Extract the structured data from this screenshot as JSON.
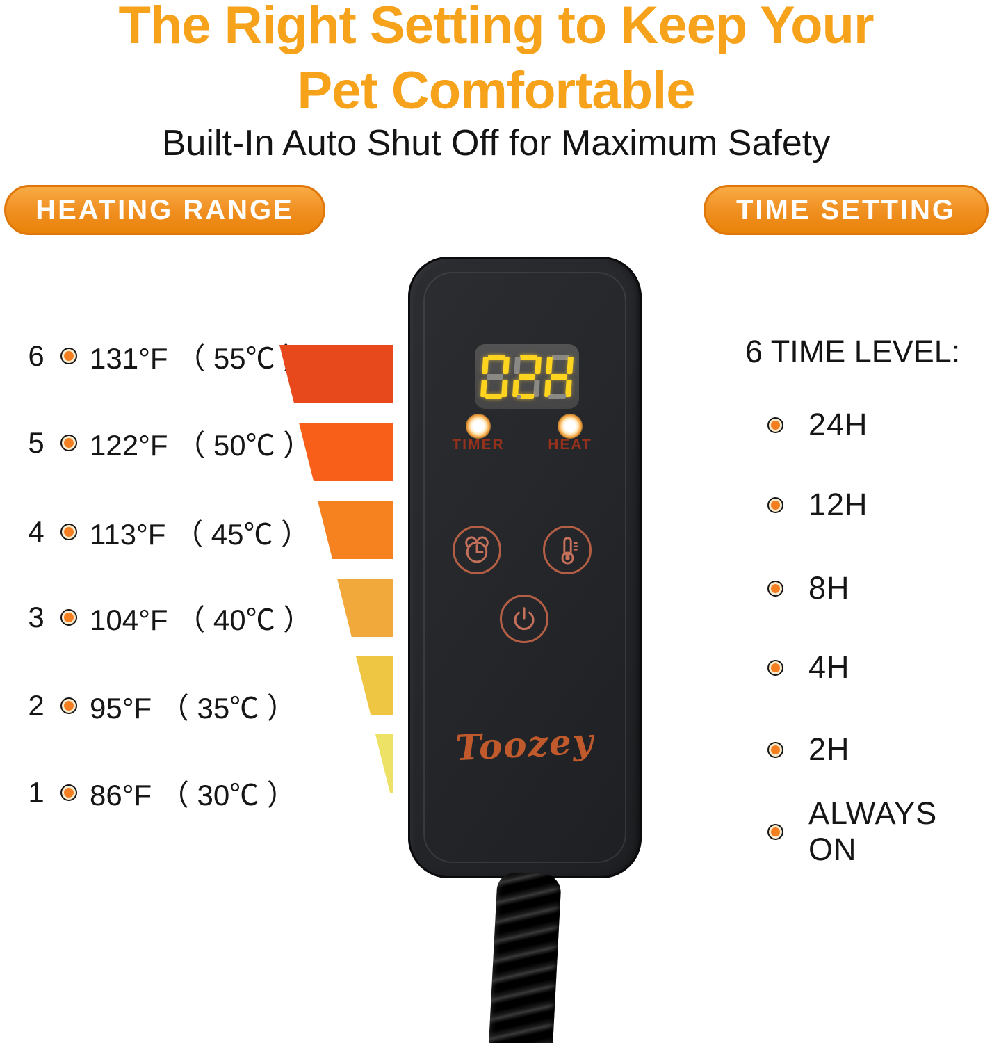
{
  "header": {
    "title_line1": "The Right Setting to Keep Your",
    "title_line2": "Pet Comfortable",
    "subtitle": "Built-In Auto Shut Off for Maximum Safety"
  },
  "heating": {
    "badge": "HEATING RANGE",
    "items": [
      {
        "level": "6",
        "temp": "131°F （ 55℃ ）"
      },
      {
        "level": "5",
        "temp": "122°F （ 50℃ ）"
      },
      {
        "level": "4",
        "temp": "113°F （ 45℃ ）"
      },
      {
        "level": "3",
        "temp": "104°F （ 40℃ ）"
      },
      {
        "level": "2",
        "temp": "95°F （ 35℃ ）"
      },
      {
        "level": "1",
        "temp": "86°F （ 30℃ ）"
      }
    ]
  },
  "timing": {
    "badge": "TIME SETTING",
    "heading": "6 TIME LEVEL:",
    "items": [
      "24H",
      "12H",
      "8H",
      "4H",
      "2H",
      "ALWAYS ON"
    ]
  },
  "controller": {
    "display": "02H",
    "timer_label": "TIMER",
    "heat_label": "HEAT",
    "brand": "Toozey",
    "icons": {
      "timer_button": "alarm-clock-icon",
      "heat_button": "thermometer-icon",
      "power_button": "power-icon",
      "indicators": "led-indicator"
    }
  },
  "colors": {
    "title_orange": "#f6a21b",
    "pill_orange": "#ef8c15",
    "pill_border": "#e0770b",
    "bullet_orange": "#f57e20",
    "heat_bars": [
      "#e8491c",
      "#f85f18",
      "#f5821e",
      "#f2a93c",
      "#efc644",
      "#ede266"
    ],
    "display_lit": "#ffd41f",
    "display_unlit": "#8b8984",
    "button_outline": "#b45f45",
    "led_label_red": "#96311b",
    "brand_color": "#c05a2c",
    "body_black": "#25272b"
  }
}
